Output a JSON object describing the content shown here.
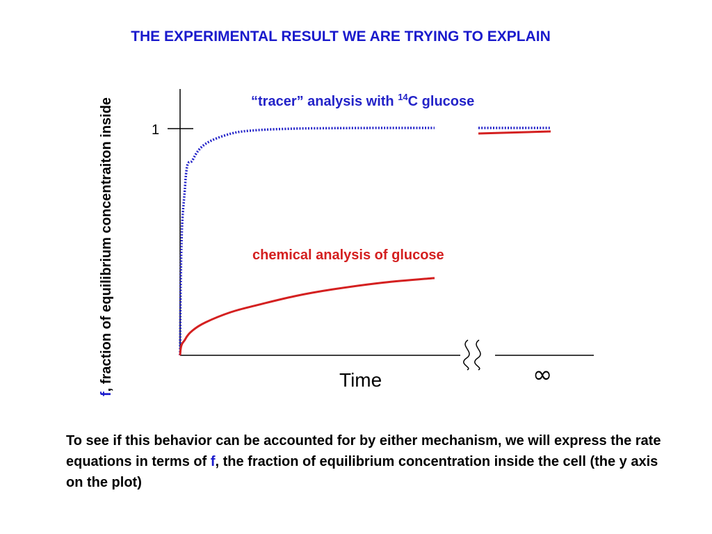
{
  "slide": {
    "title": "THE EXPERIMENTAL RESULT WE ARE TRYING TO EXPLAIN",
    "body": {
      "part1": "To see if this behavior can be accounted for by either mechanism, we will express the rate equations in terms of ",
      "f": "f",
      "part2": ", the fraction of equilibrium concentration inside the cell (the y axis on the plot)"
    }
  },
  "colors": {
    "title": "#1a1acc",
    "tracer": "#2323c8",
    "chemical": "#d42020",
    "axis": "#000000"
  },
  "chart_data": {
    "type": "line",
    "title": "",
    "xlabel": "Time",
    "ylabel_f": "f",
    "ylabel_rest": ", fraction of equilibrium concentraiton inside",
    "y_tick_label": "1",
    "x_infinity_label": "∞",
    "axis_break": true,
    "grid": false,
    "annotations": {
      "tracer": {
        "text_before": "“tracer” analysis with ",
        "superscript": "14",
        "text_after": "C glucose",
        "color": "#2323c8"
      },
      "chemical": {
        "text": "chemical analysis of glucose",
        "color": "#d42020"
      }
    },
    "series": [
      {
        "key": "tracer",
        "style": "dotted",
        "color": "#2323c8",
        "x": [
          0,
          0.02,
          0.05,
          0.1,
          0.2,
          0.3,
          0.45,
          0.6,
          0.8,
          1.0
        ],
        "y": [
          0,
          0.75,
          0.86,
          0.93,
          0.975,
          0.99,
          0.997,
          0.999,
          1.0,
          1.0
        ],
        "at_infinity": 1.0
      },
      {
        "key": "chemical",
        "style": "solid",
        "color": "#d42020",
        "x": [
          0,
          0.02,
          0.05,
          0.1,
          0.2,
          0.3,
          0.45,
          0.6,
          0.8,
          1.0
        ],
        "y": [
          0,
          0.07,
          0.11,
          0.145,
          0.19,
          0.22,
          0.26,
          0.29,
          0.32,
          0.34
        ],
        "at_infinity": 0.98
      }
    ]
  }
}
